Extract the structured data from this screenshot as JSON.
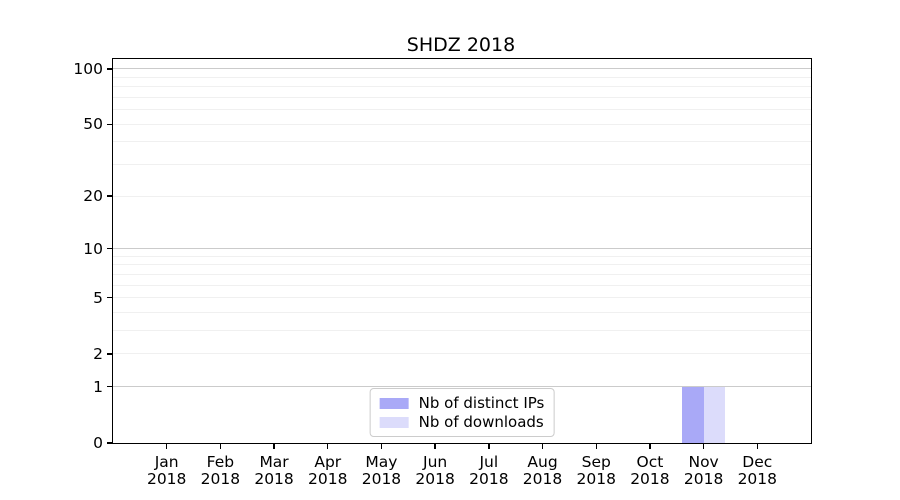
{
  "chart_data": {
    "type": "bar",
    "title": "SHDZ 2018",
    "yscale": "log1p",
    "ylim": [
      0,
      113
    ],
    "grid": true,
    "yticks": [
      0,
      1,
      2,
      5,
      10,
      20,
      50,
      100
    ],
    "major_gridlines": [
      1,
      10,
      100
    ],
    "minor_gridlines": [
      2,
      3,
      4,
      5,
      6,
      7,
      8,
      9,
      20,
      30,
      40,
      50,
      60,
      70,
      80,
      90
    ],
    "xticks": [
      {
        "line1": "Jan",
        "line2": "2018"
      },
      {
        "line1": "Feb",
        "line2": "2018"
      },
      {
        "line1": "Mar",
        "line2": "2018"
      },
      {
        "line1": "Apr",
        "line2": "2018"
      },
      {
        "line1": "May",
        "line2": "2018"
      },
      {
        "line1": "Jun",
        "line2": "2018"
      },
      {
        "line1": "Jul",
        "line2": "2018"
      },
      {
        "line1": "Aug",
        "line2": "2018"
      },
      {
        "line1": "Sep",
        "line2": "2018"
      },
      {
        "line1": "Oct",
        "line2": "2018"
      },
      {
        "line1": "Nov",
        "line2": "2018"
      },
      {
        "line1": "Dec",
        "line2": "2018"
      }
    ],
    "series": [
      {
        "name": "Nb of distinct IPs",
        "color": "#a9a9f7",
        "values": [
          0,
          0,
          0,
          0,
          0,
          0,
          0,
          0,
          0,
          0,
          1,
          0
        ]
      },
      {
        "name": "Nb of downloads",
        "color": "#dcdcfb",
        "values": [
          0,
          0,
          0,
          0,
          0,
          0,
          0,
          0,
          0,
          0,
          1,
          0
        ]
      }
    ],
    "legend": {
      "position": "lower center"
    },
    "colors": {
      "major_grid": "#cbcbcb",
      "minor_grid": "#f0f0f0",
      "axis": "#000000"
    }
  }
}
